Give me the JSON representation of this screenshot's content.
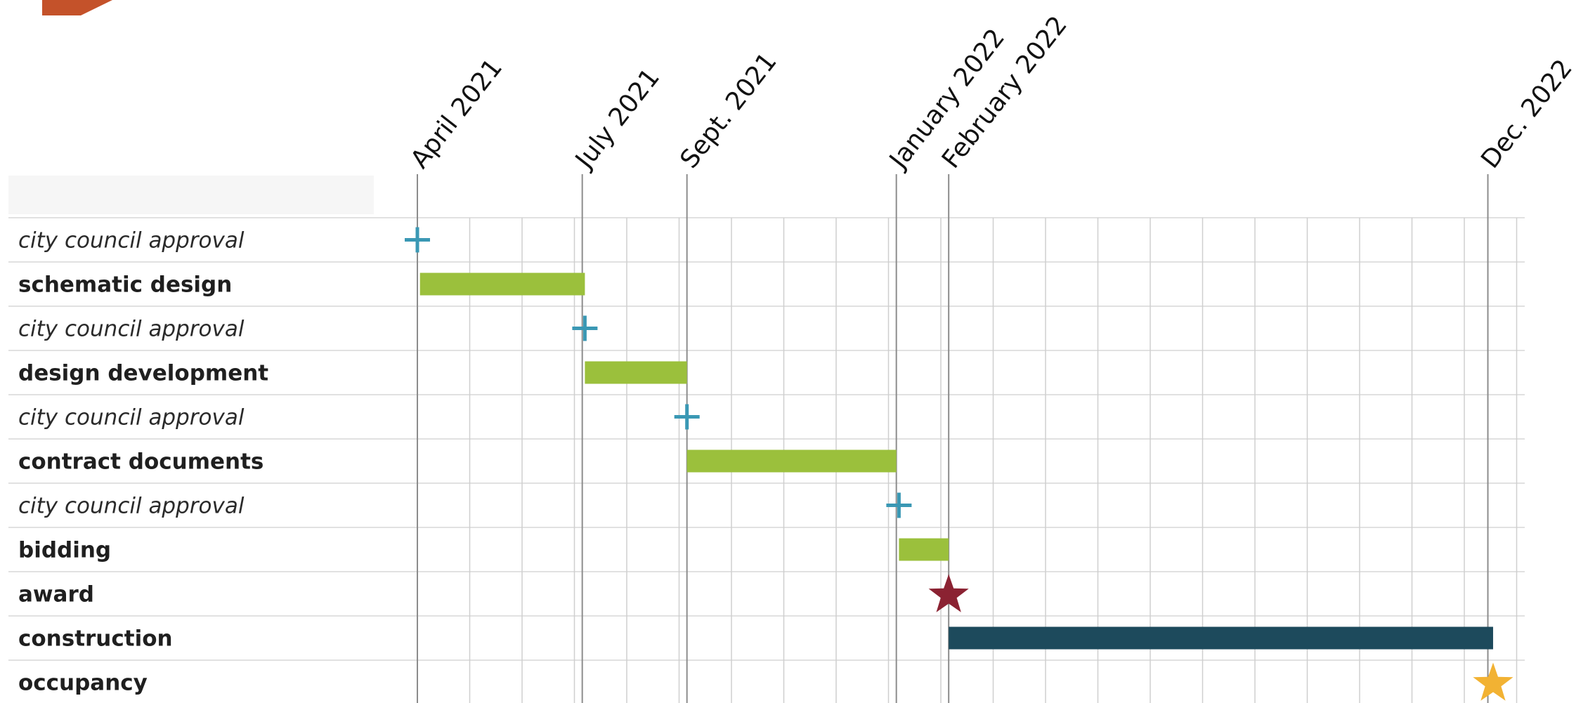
{
  "chart_data": {
    "type": "gantt",
    "date_labels": [
      {
        "label": "April 2021",
        "month": 0
      },
      {
        "label": "July 2021",
        "month": 3.15
      },
      {
        "label": "Sept. 2021",
        "month": 5.15
      },
      {
        "label": "January 2022",
        "month": 9.15
      },
      {
        "label": "February 2022",
        "month": 10.15
      },
      {
        "label": "Dec. 2022",
        "month": 20.45
      }
    ],
    "month_count": 21,
    "rows": [
      {
        "label": "city council approval",
        "style": "italic",
        "mark": "plus",
        "at": 0
      },
      {
        "label": "schematic design",
        "style": "bold",
        "mark": "bar",
        "start": 0.05,
        "end": 3.2,
        "color": "#9bc03c"
      },
      {
        "label": "city council approval",
        "style": "italic",
        "mark": "plus",
        "at": 3.2
      },
      {
        "label": "design development",
        "style": "bold",
        "mark": "bar",
        "start": 3.2,
        "end": 5.15,
        "color": "#9bc03c"
      },
      {
        "label": "city council approval",
        "style": "italic",
        "mark": "plus",
        "at": 5.15
      },
      {
        "label": "contract documents",
        "style": "bold",
        "mark": "bar",
        "start": 5.15,
        "end": 9.15,
        "color": "#9bc03c"
      },
      {
        "label": "city council approval",
        "style": "italic",
        "mark": "plus",
        "at": 9.2
      },
      {
        "label": "bidding",
        "style": "bold",
        "mark": "bar",
        "start": 9.2,
        "end": 10.15,
        "color": "#9bc03c"
      },
      {
        "label": "award",
        "style": "bold",
        "mark": "star",
        "at": 10.15,
        "color": "#8b2232"
      },
      {
        "label": "construction",
        "style": "bold",
        "mark": "bar",
        "start": 10.15,
        "end": 20.55,
        "color": "#1d4a5c"
      },
      {
        "label": "occupancy",
        "style": "bold",
        "mark": "star",
        "at": 20.55,
        "color": "#f2b233"
      }
    ],
    "plus_color": "#3a98b4",
    "grid": true
  }
}
